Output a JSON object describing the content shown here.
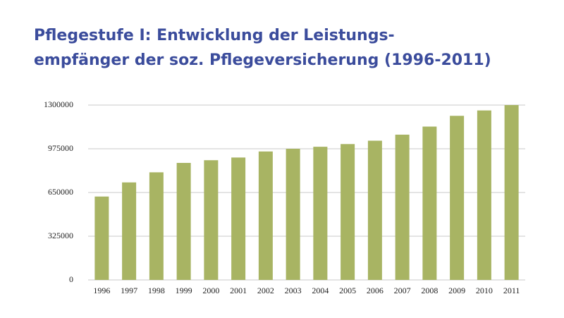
{
  "chart_data": {
    "type": "bar",
    "title": [
      "Pflegestufe I: Entwicklung der Leistungs-",
      "empfänger der soz. Pflegeversicherung  (1996-2011)"
    ],
    "categories": [
      "1996",
      "1997",
      "1998",
      "1999",
      "2000",
      "2001",
      "2002",
      "2003",
      "2004",
      "2005",
      "2006",
      "2007",
      "2008",
      "2009",
      "2010",
      "2011"
    ],
    "values": [
      620000,
      725000,
      800000,
      870000,
      890000,
      910000,
      955000,
      975000,
      990000,
      1010000,
      1035000,
      1080000,
      1140000,
      1220000,
      1260000,
      1300000
    ],
    "color": "#a8b463",
    "ylim": [
      0,
      1300000
    ],
    "yticks": [
      0,
      325000,
      650000,
      975000,
      1300000
    ],
    "grid": true
  }
}
